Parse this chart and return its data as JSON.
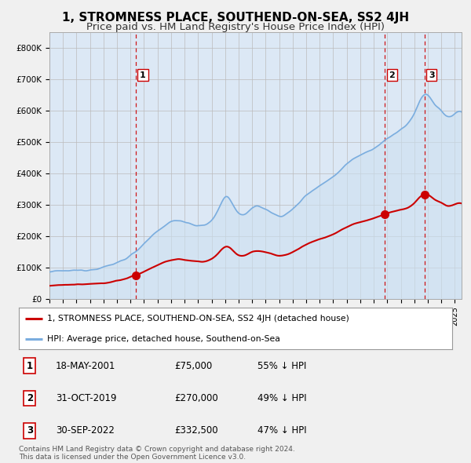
{
  "title": "1, STROMNESS PLACE, SOUTHEND-ON-SEA, SS2 4JH",
  "subtitle": "Price paid vs. HM Land Registry's House Price Index (HPI)",
  "title_fontsize": 11,
  "subtitle_fontsize": 9.5,
  "ylim": [
    0,
    850000
  ],
  "yticks": [
    0,
    100000,
    200000,
    300000,
    400000,
    500000,
    600000,
    700000,
    800000
  ],
  "ytick_labels": [
    "£0",
    "£100K",
    "£200K",
    "£300K",
    "£400K",
    "£500K",
    "£600K",
    "£700K",
    "£800K"
  ],
  "background_color": "#f0f0f0",
  "plot_bg_color": "#dce8f5",
  "grid_color": "#bbbbbb",
  "hpi_color": "#7aaddf",
  "hpi_fill_color": "#cde0f0",
  "sale_color": "#cc0000",
  "dashed_color": "#cc0000",
  "sale_points": [
    {
      "year": 2001.38,
      "price": 75000,
      "label": "1"
    },
    {
      "year": 2019.83,
      "price": 270000,
      "label": "2"
    },
    {
      "year": 2022.75,
      "price": 332500,
      "label": "3"
    }
  ],
  "legend_entries": [
    {
      "color": "#cc0000",
      "label": "1, STROMNESS PLACE, SOUTHEND-ON-SEA, SS2 4JH (detached house)"
    },
    {
      "color": "#7aaddf",
      "label": "HPI: Average price, detached house, Southend-on-Sea"
    }
  ],
  "table_data": [
    {
      "num": "1",
      "date": "18-MAY-2001",
      "price": "£75,000",
      "hpi": "55% ↓ HPI"
    },
    {
      "num": "2",
      "date": "31-OCT-2019",
      "price": "£270,000",
      "hpi": "49% ↓ HPI"
    },
    {
      "num": "3",
      "date": "30-SEP-2022",
      "price": "£332,500",
      "hpi": "47% ↓ HPI"
    }
  ],
  "footnote": "Contains HM Land Registry data © Crown copyright and database right 2024.\nThis data is licensed under the Open Government Licence v3.0.",
  "xmin": 1995,
  "xmax": 2025.5
}
